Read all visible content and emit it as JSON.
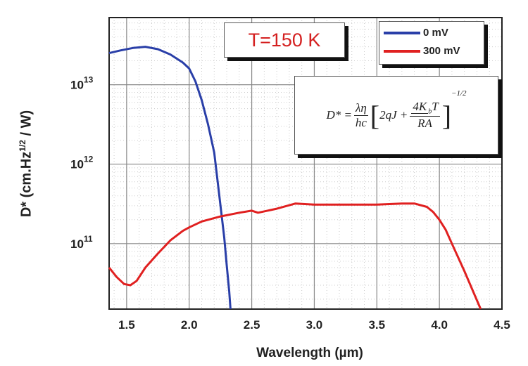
{
  "chart_data": {
    "type": "line",
    "title": "",
    "xlabel": "Wavelength (µm)",
    "ylabel_main": "D* (cm.Hz",
    "ylabel_sup": "1/2",
    "ylabel_tail": " / W)",
    "xlim": [
      1.36,
      4.5
    ],
    "ylim": [
      15000000000.0,
      70000000000000.0
    ],
    "yscale": "log",
    "grid": true,
    "xticks": [
      "1.5",
      "2.0",
      "2.5",
      "3.0",
      "3.5",
      "4.0",
      "4.5"
    ],
    "xtick_values": [
      1.5,
      2.0,
      2.5,
      3.0,
      3.5,
      4.0,
      4.5
    ],
    "yticks": [
      {
        "base": "10",
        "exp": "11",
        "value": 100000000000.0
      },
      {
        "base": "10",
        "exp": "12",
        "value": 1000000000000.0
      },
      {
        "base": "10",
        "exp": "13",
        "value": 10000000000000.0
      }
    ],
    "annotation": "T=150 K",
    "legend_position": "top-right",
    "series": [
      {
        "name": "0 mV",
        "color": "#2a3fa8",
        "x": [
          1.36,
          1.45,
          1.55,
          1.65,
          1.75,
          1.85,
          1.95,
          2.0,
          2.05,
          2.1,
          2.15,
          2.2,
          2.25,
          2.28,
          2.3,
          2.32,
          2.33
        ],
        "y": [
          25000000000000.0,
          27000000000000.0,
          29000000000000.0,
          30000000000000.0,
          28000000000000.0,
          24000000000000.0,
          19000000000000.0,
          16000000000000.0,
          11000000000000.0,
          6400000000000.0,
          3200000000000.0,
          1400000000000.0,
          300000000000.0,
          120000000000.0,
          54000000000.0,
          25000000000.0,
          15000000000.0
        ]
      },
      {
        "name": "300 mV",
        "color": "#e02020",
        "x": [
          1.36,
          1.42,
          1.48,
          1.53,
          1.58,
          1.65,
          1.75,
          1.85,
          1.95,
          2.0,
          2.1,
          2.25,
          2.4,
          2.5,
          2.55,
          2.7,
          2.85,
          3.0,
          3.25,
          3.5,
          3.7,
          3.8,
          3.9,
          3.95,
          4.0,
          4.05,
          4.1,
          4.2,
          4.33
        ],
        "y": [
          50000000000.0,
          38000000000.0,
          31000000000.0,
          30000000000.0,
          34000000000.0,
          50000000000.0,
          75000000000.0,
          110000000000.0,
          145000000000.0,
          160000000000.0,
          190000000000.0,
          220000000000.0,
          245000000000.0,
          260000000000.0,
          245000000000.0,
          275000000000.0,
          320000000000.0,
          310000000000.0,
          310000000000.0,
          310000000000.0,
          320000000000.0,
          320000000000.0,
          290000000000.0,
          250000000000.0,
          200000000000.0,
          150000000000.0,
          100000000000.0,
          45000000000.0,
          15000000000.0
        ]
      }
    ]
  },
  "equation": {
    "lhs": "D* =",
    "n1": "λη",
    "d1": "hc",
    "lb": "[",
    "mid": "2qJ +",
    "n2": "4K",
    "n2sub": "b",
    "n2b": "T",
    "d2": "RA",
    "rb": "]",
    "exp": "−1/2"
  }
}
